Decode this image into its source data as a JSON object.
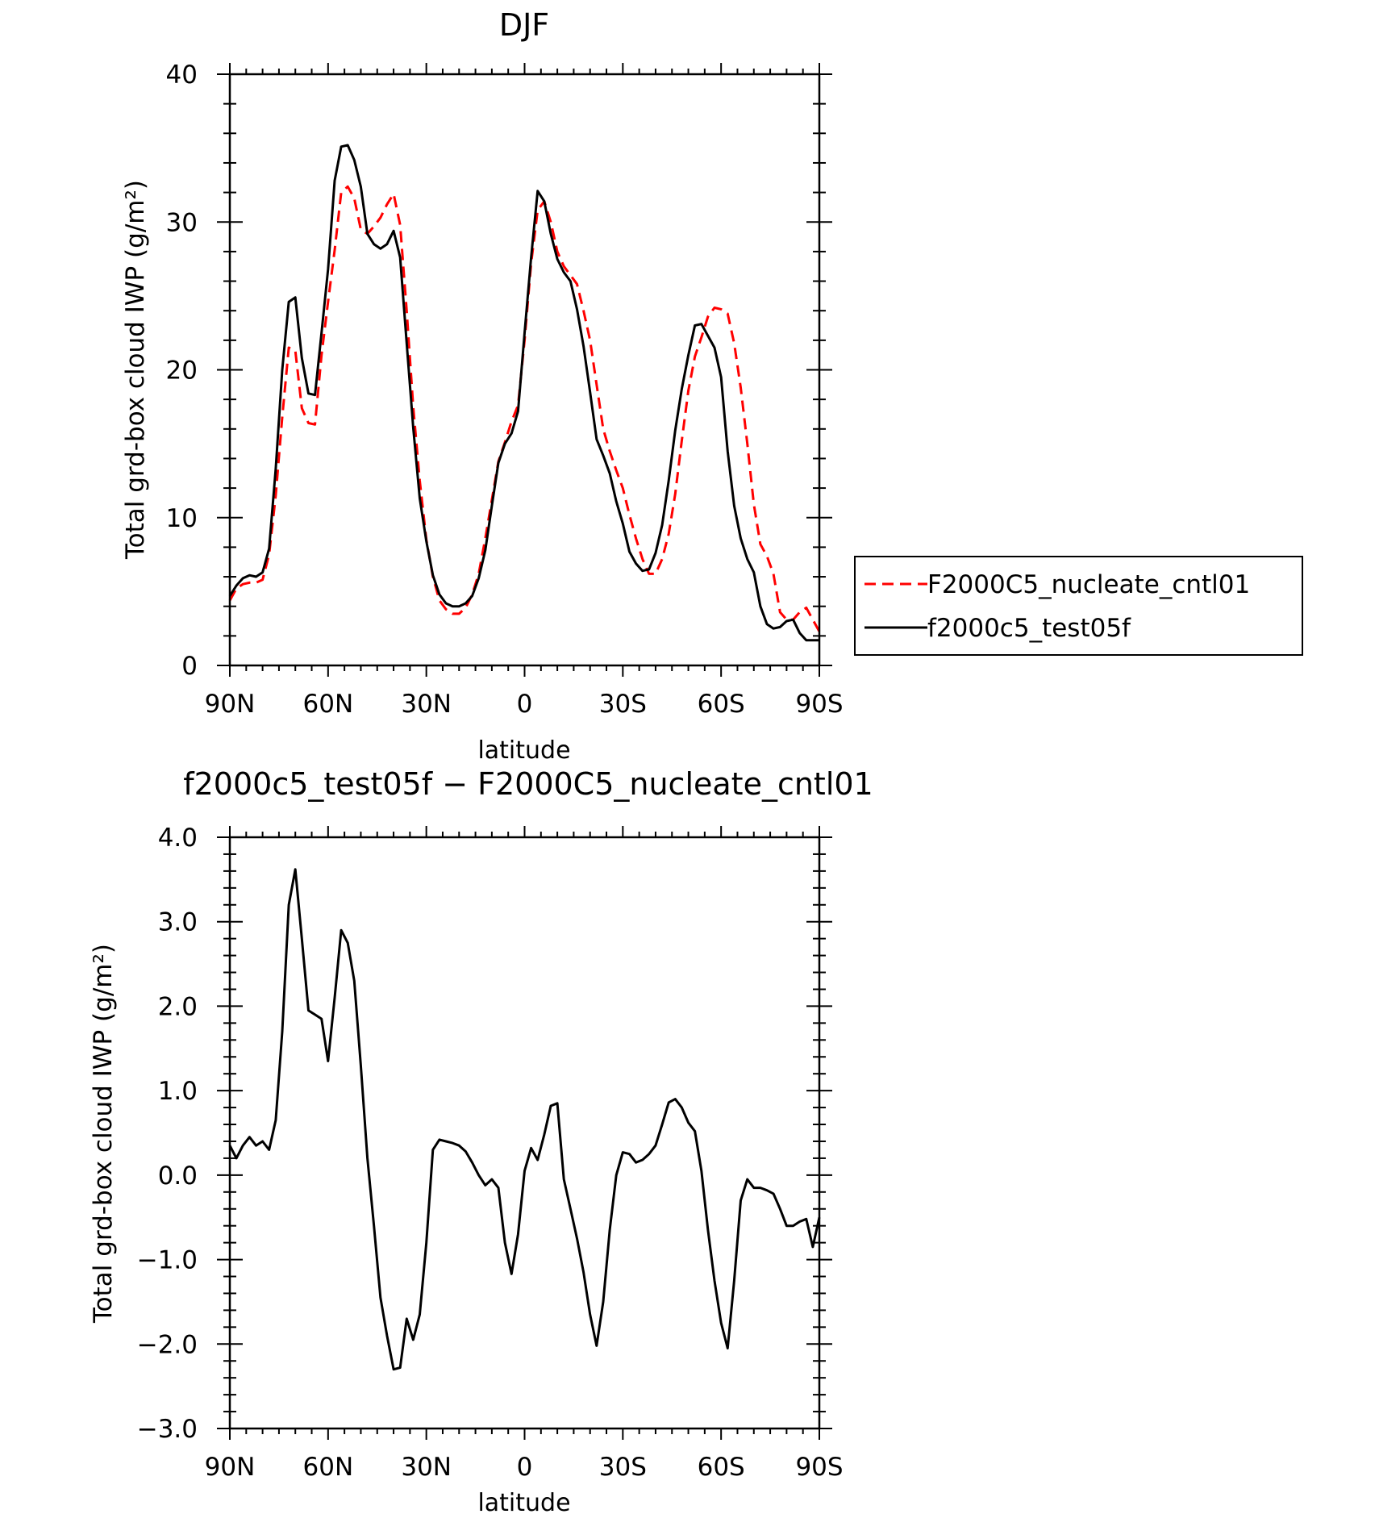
{
  "chart_data": [
    {
      "type": "line",
      "title": "DJF",
      "xlabel": "latitude",
      "ylabel": "Total grd-box cloud IWP (g/m²)",
      "xlim": [
        90,
        -90
      ],
      "ylim": [
        0,
        40
      ],
      "x_ticks": [
        90,
        60,
        30,
        0,
        -30,
        -60,
        -90
      ],
      "x_tick_labels": [
        "90N",
        "60N",
        "30N",
        "0",
        "30S",
        "60S",
        "90S"
      ],
      "y_ticks": [
        0,
        10,
        20,
        30,
        40
      ],
      "y_tick_labels": [
        "0",
        "10",
        "20",
        "30",
        "40"
      ],
      "legend_position": "right",
      "colors": {
        "cntl": "#ff0000",
        "test": "#000000"
      },
      "series": [
        {
          "name": "F2000C5_nucleate_cntl01",
          "style": "dashed",
          "color": "#ff0000",
          "x": [
            90,
            88,
            86,
            84,
            82,
            80,
            78,
            76,
            74,
            72,
            70,
            68,
            66,
            64,
            62,
            60,
            58,
            56,
            54,
            52,
            50,
            48,
            46,
            44,
            42,
            40,
            38,
            36,
            34,
            32,
            30,
            28,
            26,
            24,
            22,
            20,
            18,
            16,
            14,
            12,
            10,
            8,
            6,
            4,
            2,
            0,
            -2,
            -4,
            -6,
            -8,
            -10,
            -12,
            -14,
            -16,
            -18,
            -20,
            -22,
            -24,
            -26,
            -28,
            -30,
            -32,
            -34,
            -36,
            -38,
            -40,
            -42,
            -44,
            -46,
            -48,
            -50,
            -52,
            -54,
            -56,
            -58,
            -60,
            -62,
            -64,
            -66,
            -68,
            -70,
            -72,
            -74,
            -76,
            -78,
            -80,
            -82,
            -84,
            -86,
            -88,
            -90
          ],
          "y": [
            4.4,
            5.2,
            5.5,
            5.6,
            5.6,
            5.8,
            7.5,
            11.5,
            16.8,
            21.5,
            21.3,
            17.4,
            16.4,
            16.3,
            21.0,
            24.6,
            28.1,
            32.0,
            32.4,
            31.6,
            29.5,
            29.2,
            29.7,
            30.3,
            31.2,
            31.9,
            29.8,
            24.0,
            17.5,
            12.5,
            8.5,
            6.0,
            4.4,
            3.8,
            3.5,
            3.5,
            3.9,
            4.8,
            6.2,
            8.6,
            11.2,
            13.8,
            15.1,
            16.5,
            17.6,
            22.0,
            27.2,
            30.8,
            31.4,
            30.0,
            28.0,
            27.0,
            26.4,
            25.8,
            24.0,
            22.0,
            19.0,
            16.0,
            14.5,
            13.2,
            12.0,
            10.2,
            8.6,
            7.2,
            6.2,
            6.2,
            7.2,
            8.9,
            11.6,
            15.2,
            18.6,
            20.9,
            22.2,
            23.6,
            24.2,
            24.1,
            23.8,
            21.8,
            18.8,
            15.0,
            10.9,
            8.2,
            7.4,
            6.2,
            3.6,
            3.1,
            3.1,
            3.6,
            3.9,
            3.1,
            2.3
          ]
        },
        {
          "name": "f2000c5_test05f",
          "style": "solid",
          "color": "#000000",
          "x": [
            90,
            88,
            86,
            84,
            82,
            80,
            78,
            76,
            74,
            72,
            70,
            68,
            66,
            64,
            62,
            60,
            58,
            56,
            54,
            52,
            50,
            48,
            46,
            44,
            42,
            40,
            38,
            36,
            34,
            32,
            30,
            28,
            26,
            24,
            22,
            20,
            18,
            16,
            14,
            12,
            10,
            8,
            6,
            4,
            2,
            0,
            -2,
            -4,
            -6,
            -8,
            -10,
            -12,
            -14,
            -16,
            -18,
            -20,
            -22,
            -24,
            -26,
            -28,
            -30,
            -32,
            -34,
            -36,
            -38,
            -40,
            -42,
            -44,
            -46,
            -48,
            -50,
            -52,
            -54,
            -56,
            -58,
            -60,
            -62,
            -64,
            -66,
            -68,
            -70,
            -72,
            -74,
            -76,
            -78,
            -80,
            -82,
            -84,
            -86,
            -88,
            -90
          ],
          "y": [
            4.7,
            5.4,
            5.9,
            6.1,
            6.0,
            6.3,
            7.9,
            13.3,
            20.0,
            24.6,
            24.9,
            20.8,
            18.4,
            18.3,
            22.5,
            26.8,
            32.8,
            35.1,
            35.2,
            34.2,
            32.4,
            29.2,
            28.5,
            28.2,
            28.5,
            29.4,
            27.6,
            21.8,
            16.1,
            11.3,
            8.4,
            6.1,
            4.8,
            4.2,
            4.0,
            4.0,
            4.2,
            4.7,
            5.9,
            7.8,
            10.8,
            13.7,
            15.0,
            15.7,
            17.2,
            22.5,
            27.6,
            32.1,
            31.4,
            29.2,
            27.5,
            26.6,
            26.0,
            24.1,
            21.6,
            18.5,
            15.3,
            14.2,
            13.0,
            11.1,
            9.6,
            7.7,
            6.9,
            6.4,
            6.5,
            7.6,
            9.5,
            12.5,
            15.9,
            18.7,
            21.0,
            23.0,
            23.1,
            22.3,
            21.5,
            19.5,
            14.5,
            10.8,
            8.6,
            7.2,
            6.3,
            4.0,
            2.8,
            2.5,
            2.6,
            3.0,
            3.1,
            2.2,
            1.7,
            1.7,
            1.7
          ]
        }
      ]
    },
    {
      "type": "line",
      "title": "f2000c5_test05f − F2000C5_nucleate_cntl01",
      "xlabel": "latitude",
      "ylabel": "Total grd-box cloud IWP (g/m²)",
      "xlim": [
        90,
        -90
      ],
      "ylim": [
        -3.0,
        4.0
      ],
      "x_ticks": [
        90,
        60,
        30,
        0,
        -30,
        -60,
        -90
      ],
      "x_tick_labels": [
        "90N",
        "60N",
        "30N",
        "0",
        "30S",
        "60S",
        "90S"
      ],
      "y_ticks": [
        -3,
        -2,
        -1,
        0,
        1,
        2,
        3,
        4
      ],
      "y_tick_labels": [
        "−3.0",
        "−2.0",
        "−1.0",
        "0.0",
        "1.0",
        "2.0",
        "3.0",
        "4.0"
      ],
      "series": [
        {
          "style": "solid",
          "color": "#000000",
          "x": [
            90,
            88,
            86,
            84,
            82,
            80,
            78,
            76,
            74,
            72,
            70,
            68,
            66,
            64,
            62,
            60,
            58,
            56,
            54,
            52,
            50,
            48,
            46,
            44,
            42,
            40,
            38,
            36,
            34,
            32,
            30,
            28,
            26,
            24,
            22,
            20,
            18,
            16,
            14,
            12,
            10,
            8,
            6,
            4,
            2,
            0,
            -2,
            -4,
            -6,
            -8,
            -10,
            -12,
            -14,
            -16,
            -18,
            -20,
            -22,
            -24,
            -26,
            -28,
            -30,
            -32,
            -34,
            -36,
            -38,
            -40,
            -42,
            -44,
            -46,
            -48,
            -50,
            -52,
            -54,
            -56,
            -58,
            -60,
            -62,
            -64,
            -66,
            -68,
            -70,
            -72,
            -74,
            -76,
            -78,
            -80,
            -82,
            -84,
            -86,
            -88,
            -90
          ],
          "y": [
            0.35,
            0.2,
            0.35,
            0.45,
            0.35,
            0.4,
            0.3,
            0.65,
            1.7,
            3.2,
            3.62,
            2.8,
            1.95,
            1.9,
            1.85,
            1.35,
            2.1,
            2.9,
            2.75,
            2.3,
            1.3,
            0.2,
            -0.6,
            -1.45,
            -1.9,
            -2.3,
            -2.28,
            -1.7,
            -1.95,
            -1.65,
            -0.8,
            0.3,
            0.42,
            0.4,
            0.38,
            0.35,
            0.28,
            0.15,
            0.0,
            -0.12,
            -0.05,
            -0.15,
            -0.8,
            -1.17,
            -0.7,
            0.05,
            0.32,
            0.18,
            0.48,
            0.82,
            0.85,
            -0.05,
            -0.4,
            -0.75,
            -1.15,
            -1.65,
            -2.02,
            -1.5,
            -0.65,
            0.0,
            0.27,
            0.25,
            0.15,
            0.18,
            0.25,
            0.35,
            0.6,
            0.86,
            0.9,
            0.8,
            0.62,
            0.52,
            0.05,
            -0.65,
            -1.25,
            -1.75,
            -2.05,
            -1.25,
            -0.3,
            -0.05,
            -0.15,
            -0.15,
            -0.18,
            -0.22,
            -0.4,
            -0.6,
            -0.6,
            -0.55,
            -0.52,
            -0.85,
            -0.5
          ]
        }
      ]
    }
  ],
  "legend": {
    "entries": [
      "F2000C5_nucleate_cntl01",
      "f2000c5_test05f"
    ]
  }
}
